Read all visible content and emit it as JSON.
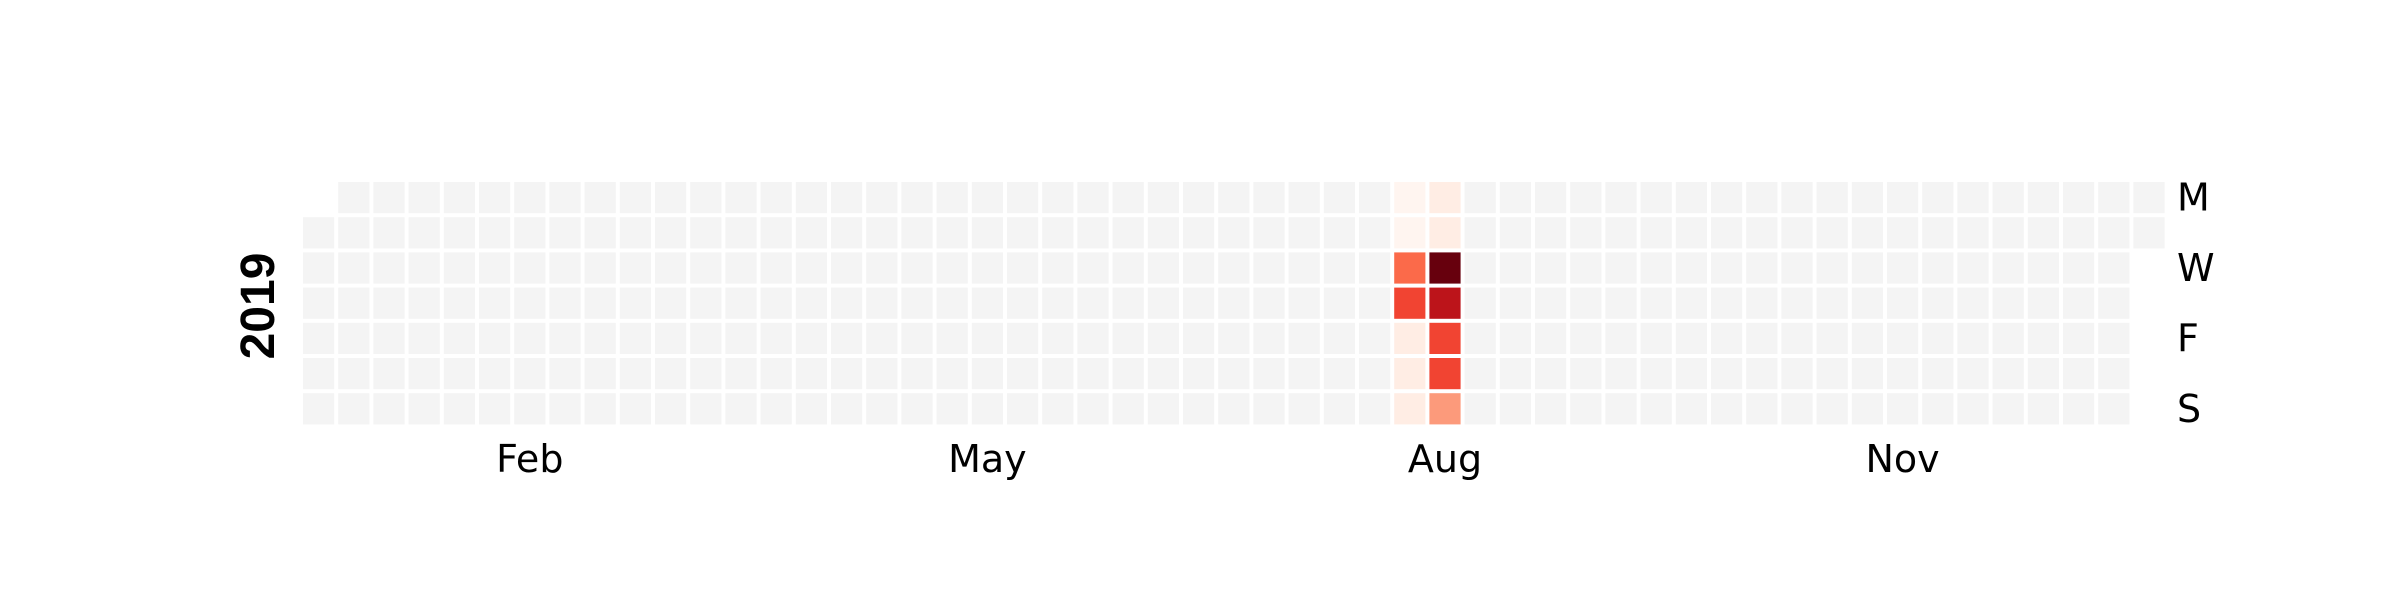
{
  "chart_data": {
    "type": "heatmap",
    "subtype": "calendar",
    "year_label": "2019",
    "x_tick_labels": [
      "Feb",
      "May",
      "Aug",
      "Nov"
    ],
    "y_tick_labels": [
      "M",
      "W",
      "F",
      "S"
    ],
    "colormap": "Reds",
    "empty_color": "#f4f4f4",
    "low_color": "#fff5f0",
    "high_color": "#67000d",
    "value_range": [
      0,
      10
    ],
    "data": [
      {
        "date": "2019-08-05",
        "value": 0
      },
      {
        "date": "2019-08-06",
        "value": 0
      },
      {
        "date": "2019-08-07",
        "value": 5
      },
      {
        "date": "2019-08-08",
        "value": 6
      },
      {
        "date": "2019-08-09",
        "value": 0.5
      },
      {
        "date": "2019-08-10",
        "value": 0.5
      },
      {
        "date": "2019-08-11",
        "value": 0.5
      },
      {
        "date": "2019-08-12",
        "value": 0.5
      },
      {
        "date": "2019-08-13",
        "value": 0.5
      },
      {
        "date": "2019-08-14",
        "value": 10
      },
      {
        "date": "2019-08-15",
        "value": 8
      },
      {
        "date": "2019-08-16",
        "value": 6
      },
      {
        "date": "2019-08-17",
        "value": 6
      },
      {
        "date": "2019-08-18",
        "value": 3.5
      }
    ]
  }
}
